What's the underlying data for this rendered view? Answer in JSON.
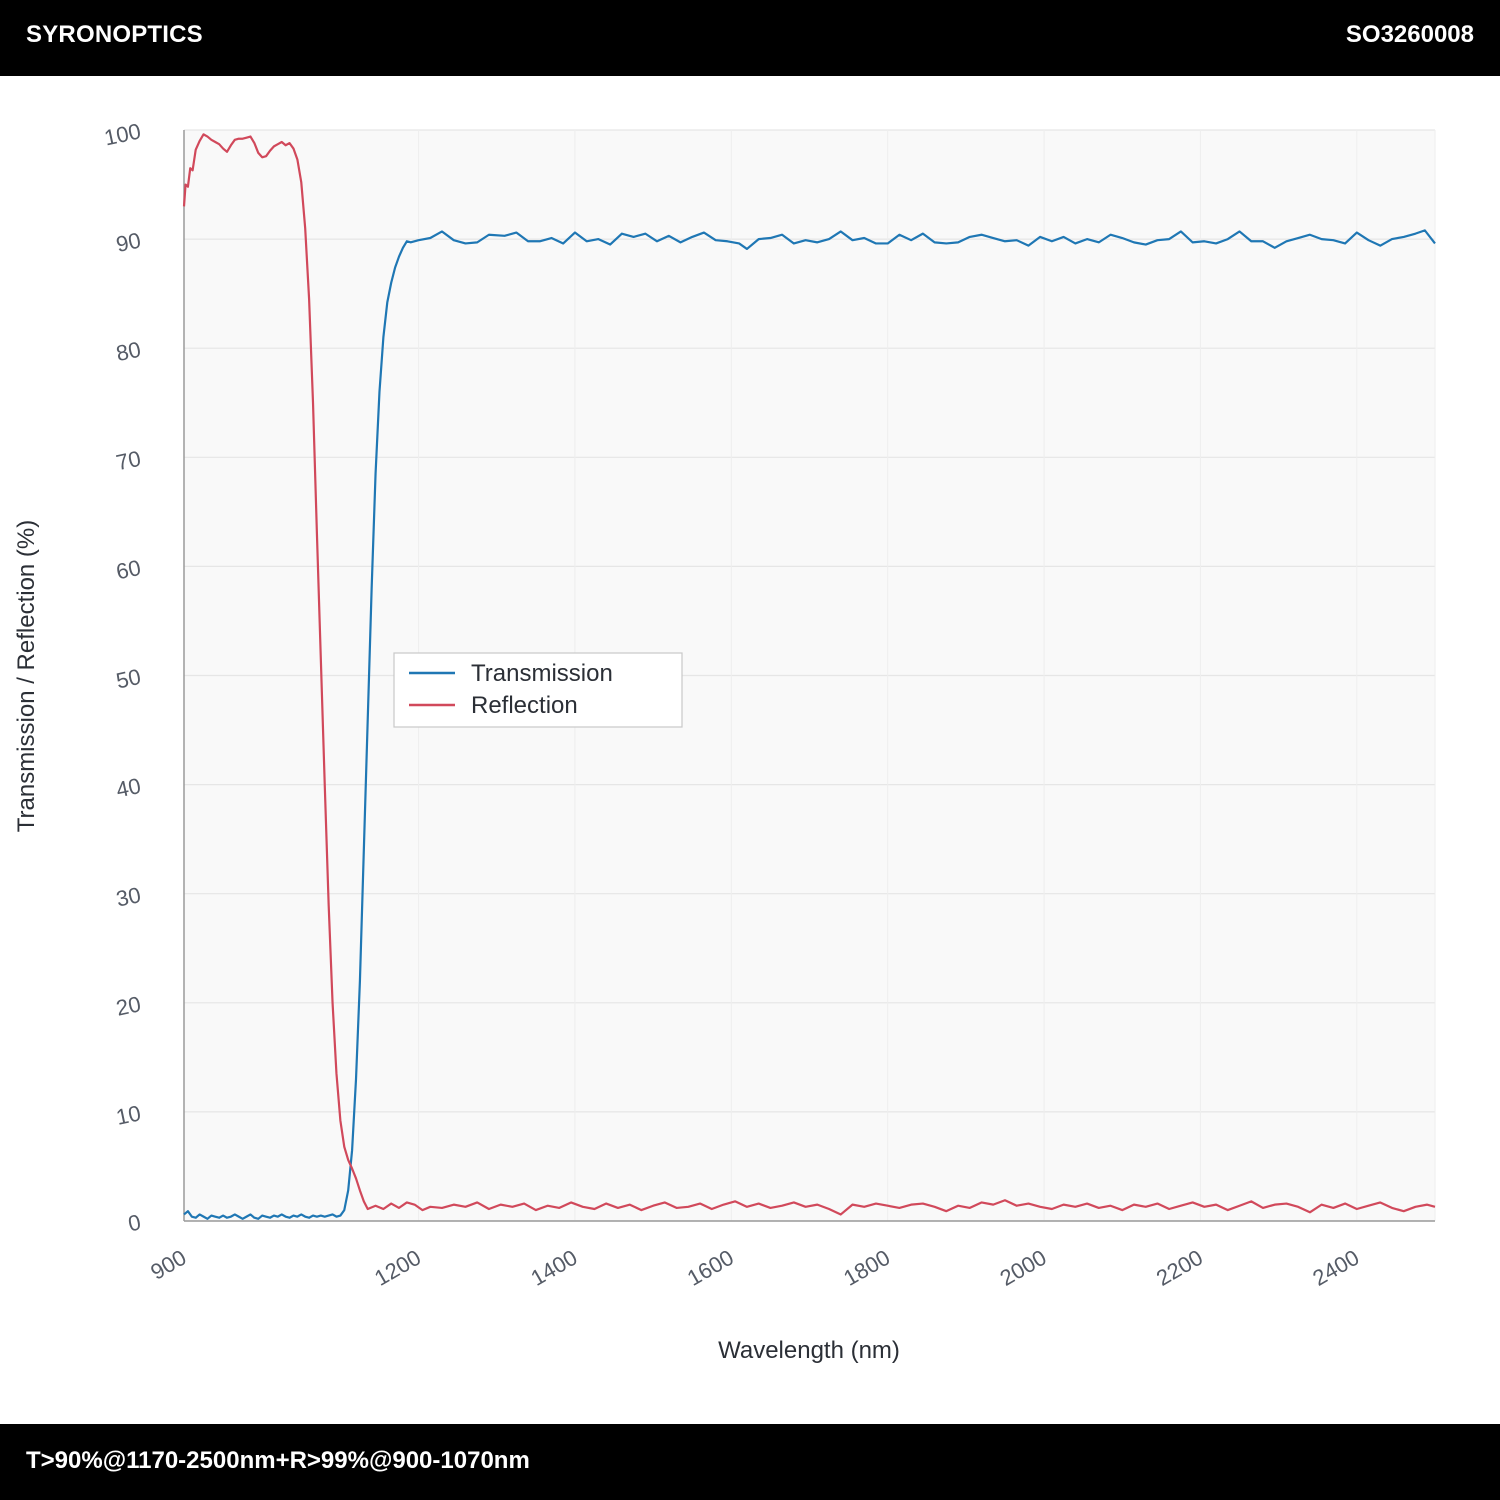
{
  "header": {
    "brand": "SYRONOPTICS",
    "part_number": "SO3260008"
  },
  "footer": {
    "spec": "T>90%@1170-2500nm+R>99%@900-1070nm"
  },
  "colors": {
    "transmission": "#1f77b4",
    "reflection": "#d1495b",
    "plot_background": "#f9f9f9",
    "grid": "#e6e6e6"
  },
  "chart_data": {
    "type": "line",
    "xlabel": "Wavelength (nm)",
    "ylabel": "Transmission / Reflection (%)",
    "xlim": [
      900,
      2500
    ],
    "ylim": [
      0,
      100
    ],
    "x_ticks": [
      900,
      1200,
      1400,
      1600,
      1800,
      2000,
      2200,
      2400
    ],
    "y_ticks": [
      0,
      10,
      20,
      30,
      40,
      50,
      60,
      70,
      80,
      90,
      100
    ],
    "grid": true,
    "legend_position": "center-left",
    "series": [
      {
        "name": "Transmission",
        "color": "#1f77b4",
        "points": [
          [
            900,
            0.6
          ],
          [
            905,
            0.9
          ],
          [
            910,
            0.4
          ],
          [
            915,
            0.3
          ],
          [
            920,
            0.6
          ],
          [
            925,
            0.4
          ],
          [
            930,
            0.2
          ],
          [
            935,
            0.5
          ],
          [
            940,
            0.4
          ],
          [
            945,
            0.3
          ],
          [
            950,
            0.5
          ],
          [
            955,
            0.3
          ],
          [
            960,
            0.4
          ],
          [
            965,
            0.6
          ],
          [
            970,
            0.4
          ],
          [
            975,
            0.2
          ],
          [
            980,
            0.4
          ],
          [
            985,
            0.6
          ],
          [
            990,
            0.3
          ],
          [
            995,
            0.2
          ],
          [
            1000,
            0.5
          ],
          [
            1005,
            0.4
          ],
          [
            1010,
            0.3
          ],
          [
            1015,
            0.5
          ],
          [
            1020,
            0.4
          ],
          [
            1025,
            0.6
          ],
          [
            1030,
            0.4
          ],
          [
            1035,
            0.3
          ],
          [
            1040,
            0.5
          ],
          [
            1045,
            0.4
          ],
          [
            1050,
            0.6
          ],
          [
            1055,
            0.4
          ],
          [
            1060,
            0.3
          ],
          [
            1065,
            0.5
          ],
          [
            1070,
            0.4
          ],
          [
            1075,
            0.5
          ],
          [
            1080,
            0.4
          ],
          [
            1085,
            0.5
          ],
          [
            1090,
            0.6
          ],
          [
            1095,
            0.4
          ],
          [
            1100,
            0.5
          ],
          [
            1105,
            1.0
          ],
          [
            1110,
            2.8
          ],
          [
            1115,
            6.5
          ],
          [
            1120,
            13.0
          ],
          [
            1125,
            22.0
          ],
          [
            1130,
            34.0
          ],
          [
            1135,
            46.0
          ],
          [
            1140,
            58.0
          ],
          [
            1145,
            68.5
          ],
          [
            1150,
            76.0
          ],
          [
            1155,
            81.0
          ],
          [
            1160,
            84.2
          ],
          [
            1165,
            86.0
          ],
          [
            1170,
            87.4
          ],
          [
            1175,
            88.4
          ],
          [
            1180,
            89.2
          ],
          [
            1185,
            89.8
          ],
          [
            1190,
            89.7
          ],
          [
            1200,
            89.9
          ],
          [
            1215,
            90.1
          ],
          [
            1230,
            90.7
          ],
          [
            1245,
            89.9
          ],
          [
            1260,
            89.6
          ],
          [
            1275,
            89.7
          ],
          [
            1290,
            90.4
          ],
          [
            1310,
            90.3
          ],
          [
            1325,
            90.6
          ],
          [
            1340,
            89.8
          ],
          [
            1355,
            89.8
          ],
          [
            1370,
            90.1
          ],
          [
            1385,
            89.6
          ],
          [
            1400,
            90.6
          ],
          [
            1415,
            89.8
          ],
          [
            1430,
            90.0
          ],
          [
            1445,
            89.5
          ],
          [
            1460,
            90.5
          ],
          [
            1475,
            90.2
          ],
          [
            1490,
            90.5
          ],
          [
            1505,
            89.8
          ],
          [
            1520,
            90.3
          ],
          [
            1535,
            89.7
          ],
          [
            1550,
            90.2
          ],
          [
            1565,
            90.6
          ],
          [
            1580,
            89.9
          ],
          [
            1595,
            89.8
          ],
          [
            1610,
            89.6
          ],
          [
            1620,
            89.1
          ],
          [
            1635,
            90.0
          ],
          [
            1650,
            90.1
          ],
          [
            1665,
            90.4
          ],
          [
            1680,
            89.6
          ],
          [
            1695,
            89.9
          ],
          [
            1710,
            89.7
          ],
          [
            1725,
            90.0
          ],
          [
            1740,
            90.7
          ],
          [
            1755,
            89.9
          ],
          [
            1770,
            90.1
          ],
          [
            1785,
            89.6
          ],
          [
            1800,
            89.6
          ],
          [
            1815,
            90.4
          ],
          [
            1830,
            89.9
          ],
          [
            1845,
            90.5
          ],
          [
            1860,
            89.7
          ],
          [
            1875,
            89.6
          ],
          [
            1890,
            89.7
          ],
          [
            1905,
            90.2
          ],
          [
            1920,
            90.4
          ],
          [
            1935,
            90.1
          ],
          [
            1950,
            89.8
          ],
          [
            1965,
            89.9
          ],
          [
            1980,
            89.4
          ],
          [
            1995,
            90.2
          ],
          [
            2010,
            89.8
          ],
          [
            2025,
            90.2
          ],
          [
            2040,
            89.6
          ],
          [
            2055,
            90.0
          ],
          [
            2070,
            89.7
          ],
          [
            2085,
            90.4
          ],
          [
            2100,
            90.1
          ],
          [
            2115,
            89.7
          ],
          [
            2130,
            89.5
          ],
          [
            2145,
            89.9
          ],
          [
            2160,
            90.0
          ],
          [
            2175,
            90.7
          ],
          [
            2190,
            89.7
          ],
          [
            2205,
            89.8
          ],
          [
            2220,
            89.6
          ],
          [
            2235,
            90.0
          ],
          [
            2250,
            90.7
          ],
          [
            2265,
            89.8
          ],
          [
            2280,
            89.8
          ],
          [
            2295,
            89.2
          ],
          [
            2310,
            89.8
          ],
          [
            2325,
            90.1
          ],
          [
            2340,
            90.4
          ],
          [
            2355,
            90.0
          ],
          [
            2370,
            89.9
          ],
          [
            2385,
            89.6
          ],
          [
            2400,
            90.6
          ],
          [
            2415,
            89.9
          ],
          [
            2430,
            89.4
          ],
          [
            2445,
            90.0
          ],
          [
            2460,
            90.2
          ],
          [
            2475,
            90.5
          ],
          [
            2487,
            90.8
          ],
          [
            2500,
            89.6
          ]
        ]
      },
      {
        "name": "Reflection",
        "color": "#d1495b",
        "points": [
          [
            900,
            93.0
          ],
          [
            902,
            95.0
          ],
          [
            905,
            94.8
          ],
          [
            908,
            96.5
          ],
          [
            911,
            96.3
          ],
          [
            915,
            98.2
          ],
          [
            920,
            99.0
          ],
          [
            925,
            99.6
          ],
          [
            930,
            99.4
          ],
          [
            935,
            99.1
          ],
          [
            940,
            98.9
          ],
          [
            945,
            98.7
          ],
          [
            950,
            98.3
          ],
          [
            955,
            98.0
          ],
          [
            960,
            98.6
          ],
          [
            965,
            99.1
          ],
          [
            970,
            99.2
          ],
          [
            975,
            99.2
          ],
          [
            980,
            99.3
          ],
          [
            985,
            99.4
          ],
          [
            990,
            98.8
          ],
          [
            995,
            97.9
          ],
          [
            1000,
            97.5
          ],
          [
            1005,
            97.6
          ],
          [
            1010,
            98.1
          ],
          [
            1015,
            98.5
          ],
          [
            1020,
            98.7
          ],
          [
            1025,
            98.9
          ],
          [
            1030,
            98.6
          ],
          [
            1035,
            98.8
          ],
          [
            1040,
            98.3
          ],
          [
            1045,
            97.3
          ],
          [
            1050,
            95.2
          ],
          [
            1055,
            91.0
          ],
          [
            1060,
            84.5
          ],
          [
            1065,
            75.0
          ],
          [
            1070,
            63.0
          ],
          [
            1075,
            51.5
          ],
          [
            1080,
            40.0
          ],
          [
            1085,
            29.0
          ],
          [
            1090,
            20.0
          ],
          [
            1095,
            13.5
          ],
          [
            1100,
            9.2
          ],
          [
            1105,
            6.8
          ],
          [
            1110,
            5.6
          ],
          [
            1115,
            4.8
          ],
          [
            1120,
            3.9
          ],
          [
            1125,
            2.8
          ],
          [
            1130,
            1.8
          ],
          [
            1135,
            1.1
          ],
          [
            1145,
            1.4
          ],
          [
            1155,
            1.1
          ],
          [
            1165,
            1.6
          ],
          [
            1175,
            1.2
          ],
          [
            1185,
            1.7
          ],
          [
            1195,
            1.5
          ],
          [
            1205,
            1.0
          ],
          [
            1215,
            1.3
          ],
          [
            1230,
            1.2
          ],
          [
            1245,
            1.5
          ],
          [
            1260,
            1.3
          ],
          [
            1275,
            1.7
          ],
          [
            1290,
            1.1
          ],
          [
            1305,
            1.5
          ],
          [
            1320,
            1.3
          ],
          [
            1335,
            1.6
          ],
          [
            1350,
            1.0
          ],
          [
            1365,
            1.4
          ],
          [
            1380,
            1.2
          ],
          [
            1395,
            1.7
          ],
          [
            1410,
            1.3
          ],
          [
            1425,
            1.1
          ],
          [
            1440,
            1.6
          ],
          [
            1455,
            1.2
          ],
          [
            1470,
            1.5
          ],
          [
            1485,
            1.0
          ],
          [
            1500,
            1.4
          ],
          [
            1515,
            1.7
          ],
          [
            1530,
            1.2
          ],
          [
            1545,
            1.3
          ],
          [
            1560,
            1.6
          ],
          [
            1575,
            1.1
          ],
          [
            1590,
            1.5
          ],
          [
            1605,
            1.8
          ],
          [
            1620,
            1.3
          ],
          [
            1635,
            1.6
          ],
          [
            1650,
            1.2
          ],
          [
            1665,
            1.4
          ],
          [
            1680,
            1.7
          ],
          [
            1695,
            1.3
          ],
          [
            1710,
            1.5
          ],
          [
            1725,
            1.1
          ],
          [
            1740,
            0.6
          ],
          [
            1755,
            1.5
          ],
          [
            1770,
            1.3
          ],
          [
            1785,
            1.6
          ],
          [
            1800,
            1.4
          ],
          [
            1815,
            1.2
          ],
          [
            1830,
            1.5
          ],
          [
            1845,
            1.6
          ],
          [
            1860,
            1.3
          ],
          [
            1875,
            0.9
          ],
          [
            1890,
            1.4
          ],
          [
            1905,
            1.2
          ],
          [
            1920,
            1.7
          ],
          [
            1935,
            1.5
          ],
          [
            1950,
            1.9
          ],
          [
            1965,
            1.4
          ],
          [
            1980,
            1.6
          ],
          [
            1995,
            1.3
          ],
          [
            2010,
            1.1
          ],
          [
            2025,
            1.5
          ],
          [
            2040,
            1.3
          ],
          [
            2055,
            1.6
          ],
          [
            2070,
            1.2
          ],
          [
            2085,
            1.4
          ],
          [
            2100,
            1.0
          ],
          [
            2115,
            1.5
          ],
          [
            2130,
            1.3
          ],
          [
            2145,
            1.6
          ],
          [
            2160,
            1.1
          ],
          [
            2175,
            1.4
          ],
          [
            2190,
            1.7
          ],
          [
            2205,
            1.3
          ],
          [
            2220,
            1.5
          ],
          [
            2235,
            1.0
          ],
          [
            2250,
            1.4
          ],
          [
            2265,
            1.8
          ],
          [
            2280,
            1.2
          ],
          [
            2295,
            1.5
          ],
          [
            2310,
            1.6
          ],
          [
            2325,
            1.3
          ],
          [
            2340,
            0.8
          ],
          [
            2355,
            1.5
          ],
          [
            2370,
            1.2
          ],
          [
            2385,
            1.6
          ],
          [
            2400,
            1.1
          ],
          [
            2415,
            1.4
          ],
          [
            2430,
            1.7
          ],
          [
            2445,
            1.2
          ],
          [
            2460,
            0.9
          ],
          [
            2475,
            1.3
          ],
          [
            2490,
            1.5
          ],
          [
            2500,
            1.3
          ]
        ]
      }
    ]
  }
}
